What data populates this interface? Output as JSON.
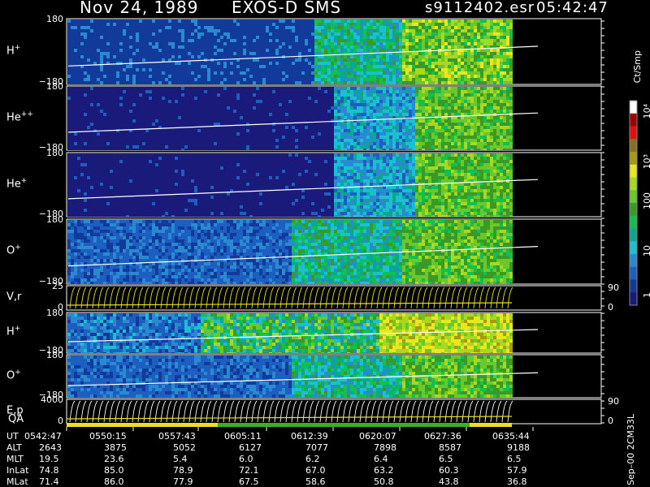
{
  "header": {
    "date": "Nov 24, 1989",
    "mission": "EXOS-D SMS",
    "file": "s9112402.esr",
    "time": "05:42:47"
  },
  "colorbar": {
    "unit": "Ct/Smp",
    "ticks": [
      "10⁴",
      "10³",
      "100",
      "10",
      "1"
    ],
    "colors": [
      "#1a1a7a",
      "#123a9a",
      "#1d5fc0",
      "#2a8ad0",
      "#19c0d0",
      "#0aa890",
      "#10c050",
      "#3a9a28",
      "#6cc828",
      "#a8d820",
      "#e8e820",
      "#a89a10",
      "#887020",
      "#e01010",
      "#a00000",
      "#ffffff"
    ]
  },
  "colors": {
    "background": "#000000",
    "dark_blue": "#1a1a78",
    "trace": "#ffffff",
    "yellow": "#e8e020"
  },
  "panels": [
    {
      "label": "H",
      "sup": "+",
      "ymax": "180",
      "ymin": "−180"
    },
    {
      "label": "He",
      "sup": "++",
      "ymax": "180",
      "ymin": "−180"
    },
    {
      "label": "He",
      "sup": "+",
      "ymax": "180",
      "ymin": "−180"
    },
    {
      "label": "O",
      "sup": "+",
      "ymax": "180",
      "ymin": "−180"
    },
    {
      "label": "V,r",
      "sup": "",
      "ymax": "25",
      "ymin": "0",
      "rmax": "90",
      "rmin": "0"
    },
    {
      "label": "H",
      "sup": "+",
      "ymax": "180",
      "ymin": "−180"
    },
    {
      "label": "O",
      "sup": "+",
      "ymax": "180",
      "ymin": "−180"
    },
    {
      "label": "E,p",
      "sup": "",
      "ymax": "4000",
      "ymin": "0",
      "rmax": "90",
      "rmin": "0"
    }
  ],
  "qa_label": "QA",
  "footer": {
    "rows": [
      {
        "name": "UT",
        "values": [
          "0542:47",
          "0550:15",
          "0557:43",
          "0605:11",
          "0612:39",
          "0620:07",
          "0627:36",
          "0635:44"
        ]
      },
      {
        "name": "ALT",
        "values": [
          "2643",
          "3875",
          "5052",
          "6127",
          "7077",
          "7898",
          "8587",
          "9188"
        ]
      },
      {
        "name": "MLT",
        "values": [
          "19.5",
          "23.6",
          "5.4",
          "6.0",
          "6.2",
          "6.4",
          "6.5",
          "6.5"
        ]
      },
      {
        "name": "InLat",
        "values": [
          "74.8",
          "85.0",
          "78.9",
          "72.1",
          "67.0",
          "63.2",
          "60.3",
          "57.9"
        ]
      },
      {
        "name": "MLat",
        "values": [
          "71.4",
          "86.0",
          "77.9",
          "67.5",
          "58.6",
          "50.8",
          "43.8",
          "36.8"
        ]
      }
    ],
    "side_note": "Sep–00 2CM33L"
  },
  "chart_data": {
    "type": "heatmap",
    "title": "Nov 24, 1989   EXOS-D SMS",
    "x_ticks": [
      "0542:47",
      "0550:15",
      "0557:43",
      "0605:11",
      "0612:39",
      "0620:07",
      "0627:36",
      "0635:44"
    ],
    "series": [
      {
        "name": "H+",
        "ylim": [
          -180,
          180
        ]
      },
      {
        "name": "He++",
        "ylim": [
          -180,
          180
        ]
      },
      {
        "name": "He+",
        "ylim": [
          -180,
          180
        ]
      },
      {
        "name": "O+",
        "ylim": [
          -180,
          180
        ]
      },
      {
        "name": "V,r",
        "ylim": [
          0,
          25
        ]
      },
      {
        "name": "H+",
        "ylim": [
          -180,
          180
        ]
      },
      {
        "name": "O+",
        "ylim": [
          -180,
          180
        ]
      },
      {
        "name": "E,p",
        "ylim": [
          0,
          4000
        ]
      }
    ],
    "colorbar_ticks": [
      "1",
      "10",
      "100",
      "10³",
      "10⁴"
    ],
    "colorbar_label": "Ct/Smp"
  }
}
